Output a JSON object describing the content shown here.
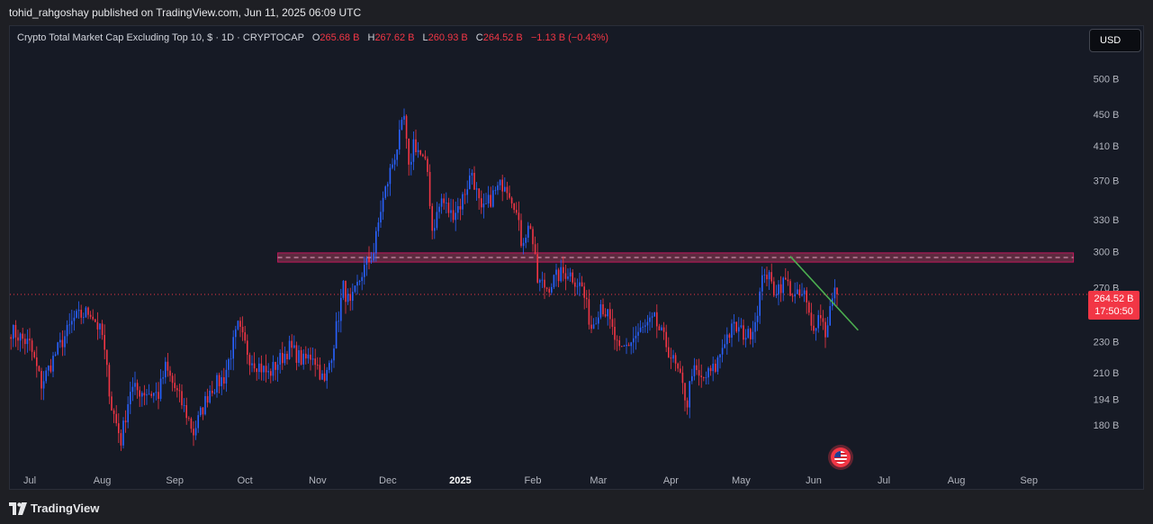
{
  "header": {
    "published_line": "tohid_rahgoshay published on TradingView.com, Jun 11, 2025 06:09 UTC"
  },
  "legend": {
    "symbol": "Crypto Total Market Cap Excluding Top 10, $ · 1D · CRYPTOCAP",
    "o_label": "O",
    "o_value": "265.68 B",
    "h_label": "H",
    "h_value": "267.62 B",
    "l_label": "L",
    "l_value": "260.93 B",
    "c_label": "C",
    "c_value": "264.52 B",
    "change": "−1.13 B (−0.43%)"
  },
  "toolbar": {
    "currency_label": "USD"
  },
  "price_tag": {
    "price": "264.52 B",
    "countdown": "17:50:50"
  },
  "footer": {
    "brand": "TradingView"
  },
  "colors": {
    "up": "#2962ff",
    "down": "#f23645",
    "trendline": "#4caf50",
    "zone_fill": "#5d2a3f",
    "zone_border": "#c2185b",
    "background": "#161a25"
  },
  "chart_data": {
    "type": "candlestick",
    "y_scale": "log",
    "ylim": [
      172,
      525
    ],
    "y_ticks": [
      "500 B",
      "450 B",
      "410 B",
      "370 B",
      "330 B",
      "300 B",
      "270 B",
      "250 B",
      "230 B",
      "210 B",
      "194 B",
      "180 B"
    ],
    "y_tick_values": [
      500,
      450,
      410,
      370,
      330,
      300,
      270,
      250,
      230,
      210,
      194,
      180
    ],
    "x_labels": [
      "Jul",
      "Aug",
      "Sep",
      "Oct",
      "Nov",
      "Dec",
      "2025",
      "Feb",
      "Mar",
      "Apr",
      "May",
      "Jun",
      "Jul",
      "Aug",
      "Sep"
    ],
    "x_label_dates": [
      "2024-07-01",
      "2024-08-01",
      "2024-09-01",
      "2024-10-01",
      "2024-11-01",
      "2024-12-01",
      "2025-01-01",
      "2025-02-01",
      "2025-03-01",
      "2025-04-01",
      "2025-05-01",
      "2025-06-01",
      "2025-07-01",
      "2025-08-01",
      "2025-09-01"
    ],
    "last_price": 264.52,
    "resistance_zone": {
      "low": 291,
      "high": 299,
      "start": "2024-10-15",
      "end": "2025-09-20"
    },
    "trendline": {
      "start_date": "2025-05-22",
      "start_value": 296,
      "end_date": "2025-06-20",
      "end_value": 238
    },
    "series_anchors": [
      [
        "2024-06-23",
        238
      ],
      [
        "2024-07-01",
        228
      ],
      [
        "2024-07-06",
        203
      ],
      [
        "2024-07-12",
        222
      ],
      [
        "2024-07-20",
        246
      ],
      [
        "2024-07-27",
        252
      ],
      [
        "2024-08-01",
        234
      ],
      [
        "2024-08-05",
        190
      ],
      [
        "2024-08-09",
        172
      ],
      [
        "2024-08-13",
        200
      ],
      [
        "2024-08-25",
        197
      ],
      [
        "2024-08-28",
        213
      ],
      [
        "2024-09-06",
        186
      ],
      [
        "2024-09-09",
        176
      ],
      [
        "2024-09-16",
        200
      ],
      [
        "2024-09-22",
        207
      ],
      [
        "2024-09-28",
        240
      ],
      [
        "2024-10-03",
        220
      ],
      [
        "2024-10-11",
        209
      ],
      [
        "2024-10-20",
        226
      ],
      [
        "2024-10-26",
        217
      ],
      [
        "2024-10-30",
        222
      ],
      [
        "2024-11-04",
        203
      ],
      [
        "2024-11-08",
        230
      ],
      [
        "2024-11-12",
        270
      ],
      [
        "2024-11-15",
        255
      ],
      [
        "2024-11-20",
        282
      ],
      [
        "2024-11-25",
        300
      ],
      [
        "2024-11-28",
        340
      ],
      [
        "2024-12-02",
        380
      ],
      [
        "2024-12-06",
        420
      ],
      [
        "2024-12-08",
        445
      ],
      [
        "2024-12-10",
        380
      ],
      [
        "2024-12-12",
        415
      ],
      [
        "2024-12-14",
        405
      ],
      [
        "2024-12-18",
        380
      ],
      [
        "2024-12-20",
        320
      ],
      [
        "2024-12-24",
        350
      ],
      [
        "2024-12-28",
        335
      ],
      [
        "2025-01-01",
        345
      ],
      [
        "2025-01-06",
        380
      ],
      [
        "2025-01-10",
        335
      ],
      [
        "2025-01-15",
        355
      ],
      [
        "2025-01-20",
        370
      ],
      [
        "2025-01-24",
        348
      ],
      [
        "2025-01-27",
        310
      ],
      [
        "2025-01-31",
        325
      ],
      [
        "2025-02-03",
        275
      ],
      [
        "2025-02-07",
        270
      ],
      [
        "2025-02-12",
        280
      ],
      [
        "2025-02-16",
        283
      ],
      [
        "2025-02-22",
        270
      ],
      [
        "2025-02-26",
        240
      ],
      [
        "2025-03-02",
        258
      ],
      [
        "2025-03-05",
        248
      ],
      [
        "2025-03-10",
        222
      ],
      [
        "2025-03-18",
        236
      ],
      [
        "2025-03-25",
        245
      ],
      [
        "2025-03-30",
        228
      ],
      [
        "2025-04-04",
        210
      ],
      [
        "2025-04-08",
        192
      ],
      [
        "2025-04-10",
        212
      ],
      [
        "2025-04-14",
        205
      ],
      [
        "2025-04-20",
        213
      ],
      [
        "2025-04-24",
        232
      ],
      [
        "2025-04-28",
        240
      ],
      [
        "2025-05-04",
        234
      ],
      [
        "2025-05-07",
        245
      ],
      [
        "2025-05-11",
        285
      ],
      [
        "2025-05-15",
        268
      ],
      [
        "2025-05-20",
        275
      ],
      [
        "2025-05-24",
        262
      ],
      [
        "2025-05-28",
        264
      ],
      [
        "2025-05-31",
        240
      ],
      [
        "2025-06-04",
        250
      ],
      [
        "2025-06-06",
        236
      ],
      [
        "2025-06-08",
        254
      ],
      [
        "2025-06-10",
        265.7
      ],
      [
        "2025-06-11",
        264.52
      ]
    ]
  }
}
